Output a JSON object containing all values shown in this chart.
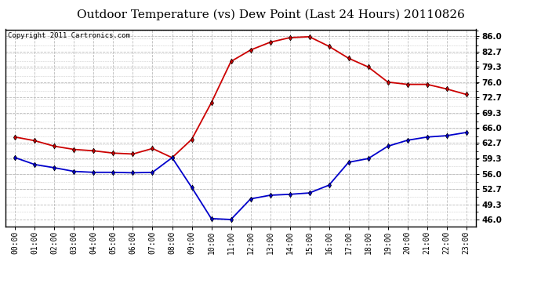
{
  "title": "Outdoor Temperature (vs) Dew Point (Last 24 Hours) 20110826",
  "copyright": "Copyright 2011 Cartronics.com",
  "x_labels": [
    "00:00",
    "01:00",
    "02:00",
    "03:00",
    "04:00",
    "05:00",
    "06:00",
    "07:00",
    "08:00",
    "09:00",
    "10:00",
    "11:00",
    "12:00",
    "13:00",
    "14:00",
    "15:00",
    "16:00",
    "17:00",
    "18:00",
    "19:00",
    "20:00",
    "21:00",
    "22:00",
    "23:00"
  ],
  "temp_data": [
    64.0,
    63.2,
    62.0,
    61.3,
    61.0,
    60.5,
    60.3,
    61.5,
    59.5,
    63.5,
    71.5,
    80.5,
    83.0,
    84.7,
    85.7,
    85.9,
    83.8,
    81.2,
    79.3,
    76.0,
    75.5,
    75.5,
    74.5,
    73.3
  ],
  "dew_data": [
    59.5,
    58.0,
    57.3,
    56.5,
    56.3,
    56.3,
    56.2,
    56.3,
    59.5,
    53.0,
    46.2,
    46.0,
    50.5,
    51.3,
    51.5,
    51.8,
    53.5,
    58.5,
    59.3,
    62.0,
    63.3,
    64.0,
    64.3,
    65.0
  ],
  "temp_color": "#cc0000",
  "dew_color": "#0000cc",
  "bg_color": "#ffffff",
  "plot_bg_color": "#ffffff",
  "grid_color": "#bbbbbb",
  "yticks": [
    46.0,
    49.3,
    52.7,
    56.0,
    59.3,
    62.7,
    66.0,
    69.3,
    72.7,
    76.0,
    79.3,
    82.7,
    86.0
  ],
  "ylim": [
    44.5,
    87.5
  ],
  "title_fontsize": 11,
  "copyright_fontsize": 6.5,
  "tick_fontsize": 7,
  "ytick_fontsize": 7.5
}
